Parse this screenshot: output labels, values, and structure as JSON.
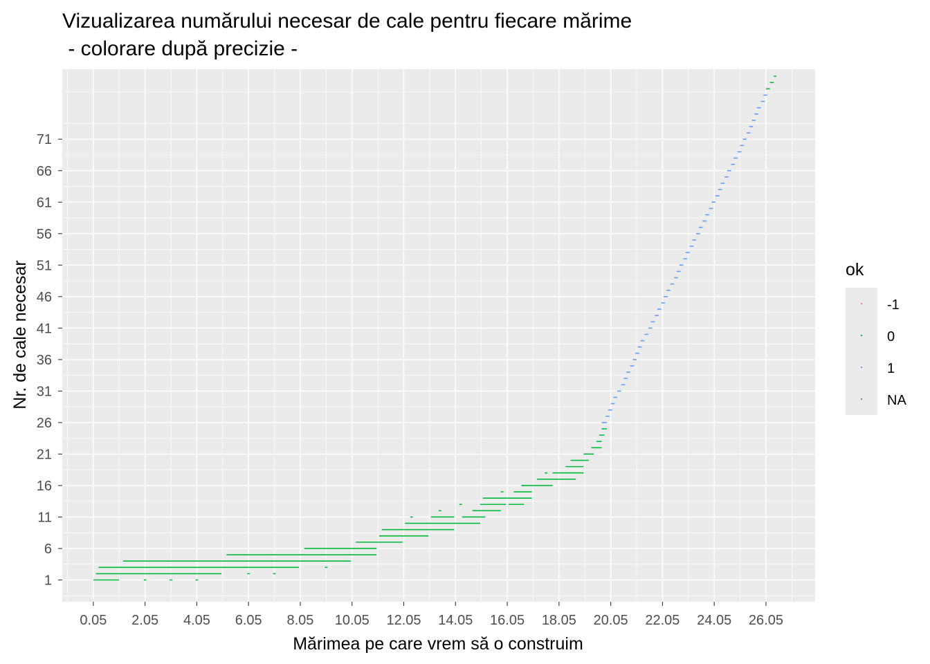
{
  "chart_data": {
    "type": "scatter",
    "title_line1": "Vizualizarea numărului necesar de cale pentru fiecare mărime",
    "title_line2": " - colorare după precizie -",
    "xlabel": "Mărimea pe care vrem să o construim",
    "ylabel": "Nr. de cale necesar",
    "xlim": [
      -1.15,
      27.95
    ],
    "ylim": [
      -2.46,
      82.12
    ],
    "x_ticks": [
      0.05,
      2.05,
      4.05,
      6.05,
      8.05,
      10.05,
      12.05,
      14.05,
      16.05,
      18.05,
      20.05,
      22.05,
      24.05,
      26.05
    ],
    "x_tick_labels": [
      "0.05",
      "2.05",
      "4.05",
      "6.05",
      "8.05",
      "10.05",
      "12.05",
      "14.05",
      "16.05",
      "18.05",
      "20.05",
      "22.05",
      "24.05",
      "26.05"
    ],
    "y_ticks": [
      1,
      6,
      11,
      16,
      21,
      26,
      31,
      36,
      41,
      46,
      51,
      56,
      61,
      66,
      71
    ],
    "y_tick_labels": [
      "1",
      "6",
      "11",
      "16",
      "21",
      "26",
      "31",
      "36",
      "41",
      "46",
      "51",
      "56",
      "61",
      "66",
      "71"
    ],
    "grid": true,
    "legend": {
      "title": "ok",
      "position": "right",
      "entries": [
        {
          "label": "-1",
          "color": "#F8766D"
        },
        {
          "label": "0",
          "color": "#00BA38"
        },
        {
          "label": "1",
          "color": "#619CFF"
        },
        {
          "label": "NA",
          "color": "#7F7F7F"
        }
      ]
    },
    "series": [
      {
        "name": "0",
        "color": "#00BA38",
        "segments": [
          [
            0.05,
            1.05,
            1
          ],
          [
            2.0,
            2.1,
            1
          ],
          [
            3.0,
            3.1,
            1
          ],
          [
            4.0,
            4.1,
            1
          ],
          [
            0.15,
            5.0,
            2
          ],
          [
            6.0,
            6.1,
            2
          ],
          [
            7.0,
            7.1,
            2
          ],
          [
            0.25,
            8.0,
            3
          ],
          [
            9.0,
            9.1,
            3
          ],
          [
            1.2,
            10.0,
            4
          ],
          [
            5.2,
            11.0,
            5
          ],
          [
            8.2,
            11.0,
            6
          ],
          [
            10.2,
            12.0,
            7
          ],
          [
            11.1,
            13.0,
            8
          ],
          [
            11.2,
            14.0,
            9
          ],
          [
            12.1,
            13.0,
            10
          ],
          [
            13.0,
            15.0,
            10
          ],
          [
            12.3,
            12.4,
            11
          ],
          [
            13.1,
            14.0,
            11
          ],
          [
            14.3,
            15.2,
            11
          ],
          [
            13.4,
            13.5,
            12
          ],
          [
            14.7,
            15.8,
            12
          ],
          [
            15.0,
            16.0,
            13
          ],
          [
            16.1,
            16.7,
            13
          ],
          [
            14.2,
            14.3,
            13
          ],
          [
            15.1,
            17.0,
            14
          ],
          [
            16.3,
            17.0,
            15
          ],
          [
            15.8,
            15.9,
            15
          ],
          [
            16.6,
            17.8,
            16
          ],
          [
            16.6,
            16.7,
            16
          ],
          [
            17.2,
            18.7,
            17
          ],
          [
            17.5,
            17.6,
            18
          ],
          [
            17.8,
            19.0,
            18
          ],
          [
            18.3,
            19.0,
            19
          ],
          [
            18.5,
            19.2,
            20
          ],
          [
            19.0,
            19.4,
            21
          ],
          [
            19.3,
            19.7,
            22
          ],
          [
            19.5,
            19.7,
            23
          ],
          [
            19.6,
            19.8,
            24
          ],
          [
            19.7,
            19.9,
            25
          ]
        ]
      },
      {
        "name": "1",
        "color": "#619CFF",
        "segments": [
          [
            19.7,
            19.9,
            26
          ],
          [
            19.85,
            20.0,
            27
          ],
          [
            19.95,
            20.1,
            28
          ],
          [
            20.05,
            20.2,
            29
          ],
          [
            20.15,
            20.3,
            30
          ],
          [
            20.3,
            20.45,
            31
          ],
          [
            20.45,
            20.6,
            32
          ],
          [
            20.55,
            20.7,
            33
          ],
          [
            20.65,
            20.8,
            34
          ],
          [
            20.8,
            20.95,
            35
          ],
          [
            20.9,
            21.05,
            36
          ],
          [
            21.0,
            21.15,
            37
          ],
          [
            21.1,
            21.25,
            38
          ],
          [
            21.2,
            21.35,
            39
          ],
          [
            21.35,
            21.5,
            40
          ],
          [
            21.5,
            21.65,
            41
          ],
          [
            21.6,
            21.75,
            42
          ],
          [
            21.75,
            21.9,
            43
          ],
          [
            21.85,
            22.0,
            44
          ],
          [
            22.0,
            22.15,
            45
          ],
          [
            22.1,
            22.25,
            46
          ],
          [
            22.2,
            22.35,
            47
          ],
          [
            22.35,
            22.5,
            48
          ],
          [
            22.5,
            22.65,
            49
          ],
          [
            22.6,
            22.75,
            50
          ],
          [
            22.7,
            22.85,
            51
          ],
          [
            22.85,
            23.0,
            52
          ],
          [
            22.95,
            23.1,
            53
          ],
          [
            23.1,
            23.25,
            54
          ],
          [
            23.2,
            23.35,
            55
          ],
          [
            23.35,
            23.5,
            56
          ],
          [
            23.45,
            23.6,
            57
          ],
          [
            23.6,
            23.75,
            58
          ],
          [
            23.7,
            23.85,
            59
          ],
          [
            23.85,
            24.0,
            60
          ],
          [
            23.95,
            24.1,
            61
          ],
          [
            24.1,
            24.25,
            62
          ],
          [
            24.2,
            24.35,
            63
          ],
          [
            24.3,
            24.45,
            64
          ],
          [
            24.45,
            24.6,
            65
          ],
          [
            24.55,
            24.7,
            66
          ],
          [
            24.7,
            24.85,
            67
          ],
          [
            24.8,
            24.95,
            68
          ],
          [
            24.95,
            25.1,
            69
          ],
          [
            25.05,
            25.2,
            70
          ],
          [
            25.15,
            25.3,
            71
          ],
          [
            25.3,
            25.45,
            72
          ],
          [
            25.4,
            25.55,
            73
          ],
          [
            25.5,
            25.65,
            74
          ],
          [
            25.6,
            25.75,
            75
          ],
          [
            25.7,
            25.85,
            76
          ],
          [
            25.85,
            26.0,
            77
          ],
          [
            25.95,
            26.1,
            78
          ]
        ]
      },
      {
        "name": "0",
        "color": "#00BA38",
        "segments": [
          [
            26.05,
            26.2,
            79
          ],
          [
            26.2,
            26.35,
            80
          ],
          [
            26.35,
            26.45,
            81
          ]
        ]
      }
    ]
  }
}
